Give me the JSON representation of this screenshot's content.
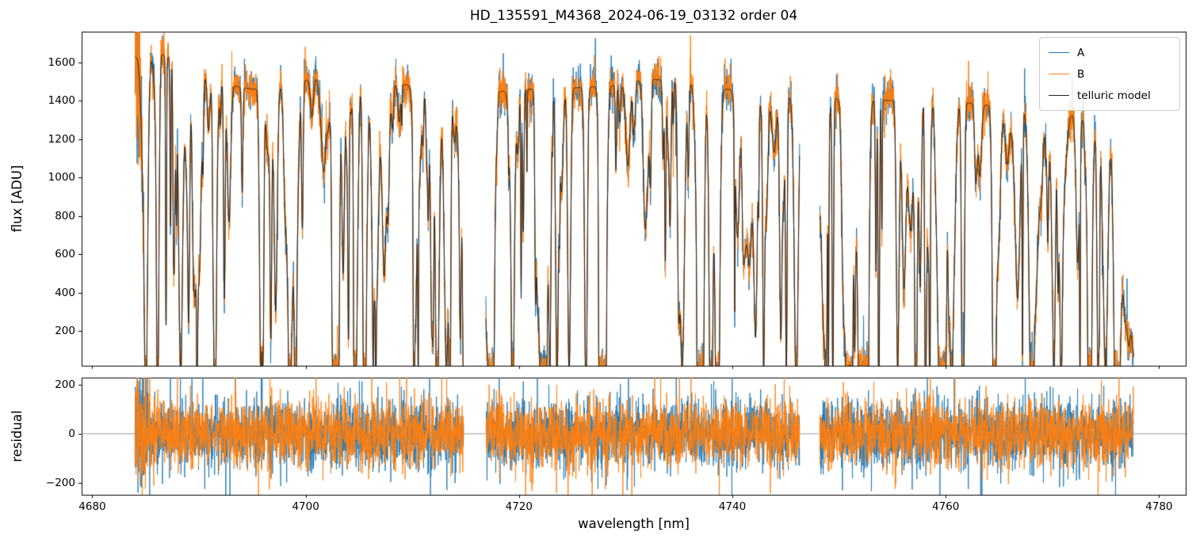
{
  "chart_data": {
    "type": "line",
    "title": "HD_135591_M4368_2024-06-19_03132  order 04",
    "xlabel": "wavelength [nm]",
    "ylabel_flux": "flux [ADU]",
    "ylabel_residual": "residual",
    "xlim": [
      4679.0,
      4782.5
    ],
    "flux_ylim": [
      20,
      1760
    ],
    "residual_ylim": [
      -250,
      230
    ],
    "x_ticks": [
      4680,
      4700,
      4720,
      4740,
      4760,
      4780
    ],
    "flux_y_ticks": [
      200,
      400,
      600,
      800,
      1000,
      1200,
      1400,
      1600
    ],
    "residual_y_ticks": [
      "−200",
      "0",
      "200"
    ],
    "residual_y_tick_values": [
      -200,
      0,
      200
    ],
    "legend": [
      {
        "label": "A",
        "color": "#1f77b4",
        "linewidth": 1.5
      },
      {
        "label": "B",
        "color": "#ff7f0e",
        "linewidth": 1.5
      },
      {
        "label": "telluric model",
        "color": "#222222",
        "linewidth": 1.0
      }
    ],
    "series_colors": {
      "A": "#1f77b4",
      "B": "#ff7f0e",
      "model": "#161616"
    },
    "segments_nm": [
      [
        4684.0,
        4714.8
      ],
      [
        4716.9,
        4746.3
      ],
      [
        4748.2,
        4777.6
      ]
    ],
    "continuum_nm_adu": [
      [
        4684.0,
        1630
      ],
      [
        4686.5,
        1645
      ],
      [
        4689.0,
        1570
      ],
      [
        4692.0,
        1490
      ],
      [
        4695.0,
        1460
      ],
      [
        4698.0,
        1480
      ],
      [
        4701.0,
        1520
      ],
      [
        4704.0,
        1530
      ],
      [
        4707.0,
        1500
      ],
      [
        4710.0,
        1480
      ],
      [
        4713.0,
        1460
      ],
      [
        4715.0,
        1450
      ],
      [
        4717.0,
        1440
      ],
      [
        4720.0,
        1460
      ],
      [
        4723.0,
        1460
      ],
      [
        4726.0,
        1470
      ],
      [
        4729.0,
        1480
      ],
      [
        4732.0,
        1515
      ],
      [
        4735.0,
        1500
      ],
      [
        4738.0,
        1470
      ],
      [
        4741.0,
        1450
      ],
      [
        4744.0,
        1430
      ],
      [
        4747.0,
        1420
      ],
      [
        4750.0,
        1410
      ],
      [
        4753.0,
        1405
      ],
      [
        4756.0,
        1400
      ],
      [
        4759.0,
        1395
      ],
      [
        4762.0,
        1390
      ],
      [
        4765.0,
        1370
      ],
      [
        4768.0,
        1355
      ],
      [
        4771.0,
        1340
      ],
      [
        4774.0,
        1290
      ],
      [
        4775.8,
        1180
      ],
      [
        4777.0,
        420
      ],
      [
        4777.6,
        70
      ]
    ],
    "deep_line_centers_nm": [
      4691.5,
      4695.8,
      4698.5,
      4703.0,
      4705.5,
      4713.2,
      4717.4,
      4722.0,
      4727.8,
      4735.3,
      4738.0,
      4746.0,
      4752.3,
      4755.5,
      4764.5,
      4770.8,
      4773.5
    ],
    "absorption_lines": {
      "count": 280,
      "width_nm_range": [
        0.04,
        0.3
      ],
      "depth_range": [
        0.12,
        1.0
      ]
    },
    "noise_std_adu": 55,
    "residual_noise_std_adu": 70,
    "residual_zero_line": 0
  }
}
